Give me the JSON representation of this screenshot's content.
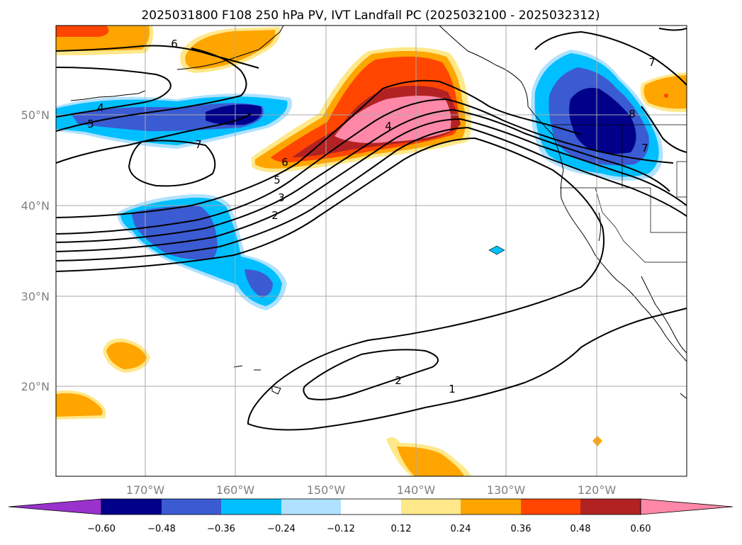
{
  "title": "2025031800 F108 250 hPa PV, IVT Landfall PC (2025032100 - 2025032312)",
  "map": {
    "lat_labels": [
      "50°N",
      "40°N",
      "30°N",
      "20°N"
    ],
    "lon_labels": [
      "170°W",
      "160°W",
      "150°W",
      "140°W",
      "130°W",
      "120°W"
    ]
  },
  "contour_labels": [
    "6",
    "4",
    "5",
    "7",
    "6",
    "5",
    "3",
    "2",
    "4",
    "7",
    "8",
    "7",
    "2",
    "1"
  ],
  "colorbar": {
    "ticks": [
      "−0.60",
      "−0.48",
      "−0.36",
      "−0.24",
      "−0.12",
      "0.12",
      "0.24",
      "0.36",
      "0.48",
      "0.60"
    ],
    "colors": [
      "#9932cc",
      "#00008b",
      "#3a5bd1",
      "#00bfff",
      "#b0e2ff",
      "#ffffff",
      "#ffe88a",
      "#ffa500",
      "#ff4500",
      "#b22222",
      "#ff88a8"
    ]
  }
}
